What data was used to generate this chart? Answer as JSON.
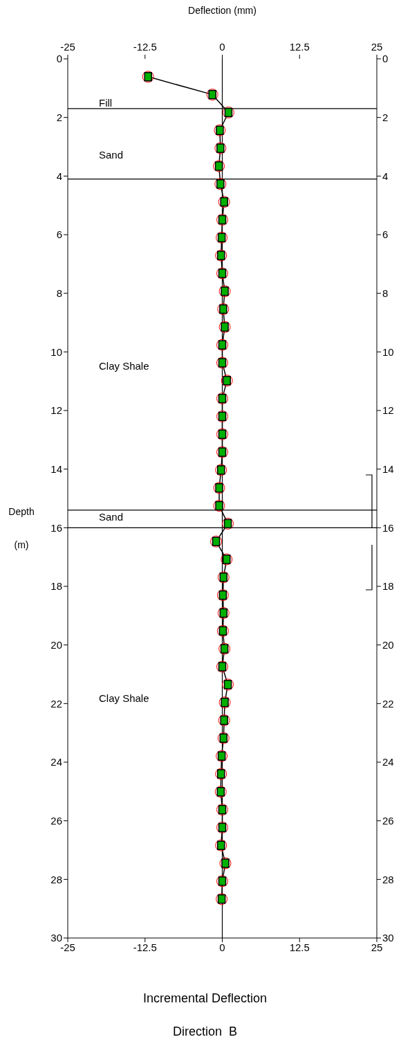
{
  "chart_data": {
    "type": "line",
    "title": "Incremental Deflection",
    "subtitle": "Direction  B",
    "xlabel": "Deflection (mm)",
    "ylabel": "Depth (m)",
    "xlim": [
      -25,
      25
    ],
    "xticks": [
      -25,
      -12.5,
      0,
      12.5,
      25
    ],
    "x2lim": [
      -25,
      25
    ],
    "x2ticks": [
      -25,
      -12.5,
      0,
      12.5,
      25
    ],
    "ylim": [
      30,
      0
    ],
    "yticks": [
      0,
      2,
      4,
      6,
      8,
      10,
      12,
      14,
      16,
      18,
      20,
      22,
      24,
      26,
      28,
      30
    ],
    "y2lim": [
      30,
      0
    ],
    "y2ticks": [
      0,
      2,
      4,
      6,
      8,
      10,
      12,
      14,
      16,
      18,
      20,
      22,
      24,
      26,
      28,
      30
    ],
    "marker": "square",
    "line_style": "solid",
    "series": [
      {
        "color": "#000000",
        "x": [
          -12,
          -1.6,
          1.0,
          -0.4,
          -0.3,
          -0.55,
          -0.3,
          0.3,
          0,
          -0.1,
          -0.2,
          0,
          0.4,
          0.15,
          0.4,
          0,
          0,
          0.75,
          0,
          0,
          0,
          0,
          -0.2,
          -0.5,
          -0.5,
          0.9,
          -1.0,
          0.7,
          0.2,
          0.1,
          0.2,
          0.1,
          0.35,
          0,
          0.9,
          0.4,
          0.3,
          0.2,
          -0.1,
          -0.2,
          -0.25,
          0,
          0,
          -0.2,
          0.5,
          0,
          -0.1
        ],
        "values": [
          0.61,
          1.22,
          1.83,
          2.44,
          3.05,
          3.66,
          4.27,
          4.88,
          5.49,
          6.1,
          6.71,
          7.32,
          7.93,
          8.54,
          9.15,
          9.76,
          10.37,
          10.98,
          11.59,
          12.2,
          12.81,
          13.42,
          14.03,
          14.64,
          15.25,
          15.86,
          16.47,
          17.08,
          17.69,
          18.3,
          18.91,
          19.52,
          20.13,
          20.74,
          21.35,
          21.96,
          22.57,
          23.18,
          23.79,
          24.4,
          25.01,
          25.62,
          26.23,
          26.84,
          27.45,
          28.06,
          28.67
        ]
      }
    ],
    "ref_lines": [
      {
        "axis": "x",
        "value": 0,
        "color": "#000000"
      },
      {
        "axis": "y",
        "value": 1.7,
        "color": "#000000"
      },
      {
        "axis": "y",
        "value": 4.1,
        "color": "#000000"
      },
      {
        "axis": "y",
        "value": 15.4,
        "color": "#000000"
      },
      {
        "axis": "y",
        "value": 16.0,
        "color": "#000000"
      }
    ],
    "annotations": [
      "Fill",
      "Sand",
      "Clay Shale",
      "Sand",
      "Clay Shale"
    ]
  }
}
